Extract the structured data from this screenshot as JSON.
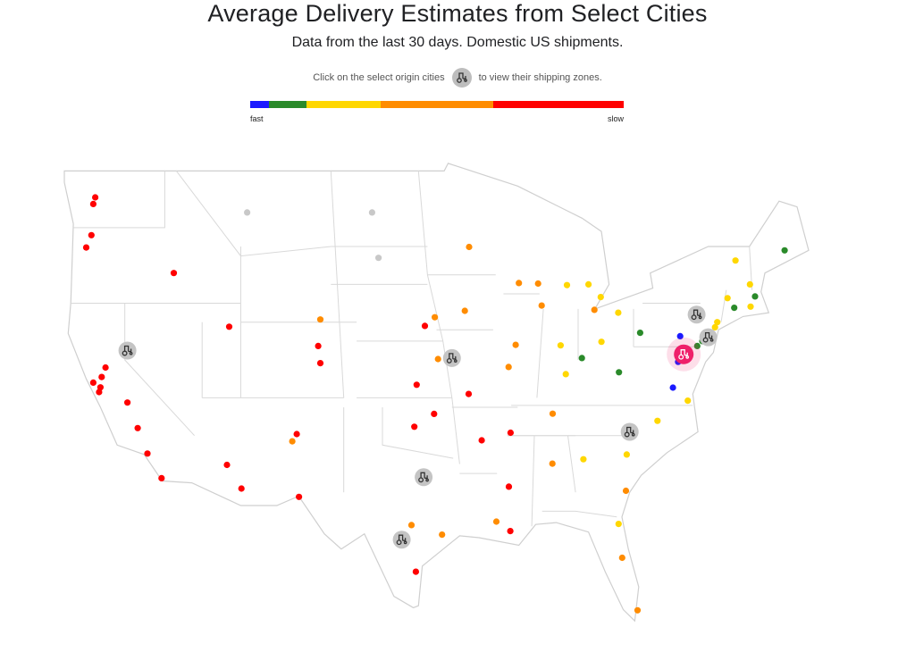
{
  "title": "Average Delivery Estimates from Select Cities",
  "subtitle": "Data from the last 30 days. Domestic US shipments.",
  "hint": {
    "before": "Click on the select origin cities",
    "after": "to view their shipping zones.",
    "icon": "truck-icon"
  },
  "legend": {
    "fast_label": "fast",
    "slow_label": "slow",
    "segments": [
      {
        "color": "#1a1aff",
        "weight": 5
      },
      {
        "color": "#2a8a2a",
        "weight": 10
      },
      {
        "color": "#ffd700",
        "weight": 20
      },
      {
        "color": "#ff8c00",
        "weight": 30
      },
      {
        "color": "#ff0000",
        "weight": 35
      }
    ]
  },
  "colors": {
    "fast": "#1a1aff",
    "good": "#2a8a2a",
    "medium": "#ffd700",
    "slow": "#ff8c00",
    "slowest": "#ff0000",
    "unavailable": "#c8c8c8",
    "selected_origin": "#ef1f6a"
  },
  "map": {
    "origins": [
      {
        "city": "Reno",
        "lat": 39.5,
        "lon": -119.8,
        "selected": false
      },
      {
        "city": "Kansas City",
        "lat": 39.1,
        "lon": -94.6,
        "selected": false
      },
      {
        "city": "Dallas",
        "lat": 32.8,
        "lon": -96.8,
        "selected": false
      },
      {
        "city": "San Antonio",
        "lat": 29.5,
        "lon": -98.5,
        "selected": false
      },
      {
        "city": "Charlotte",
        "lat": 35.2,
        "lon": -80.8,
        "selected": false
      },
      {
        "city": "Scranton",
        "lat": 41.4,
        "lon": -75.6,
        "selected": false
      },
      {
        "city": "Trenton",
        "lat": 40.2,
        "lon": -74.7,
        "selected": false
      },
      {
        "city": "Baltimore",
        "lat": 39.3,
        "lon": -76.6,
        "selected": true
      }
    ],
    "destinations": [
      {
        "lat": 47.6,
        "lon": -122.3,
        "c": "slowest"
      },
      {
        "lat": 47.25,
        "lon": -122.45,
        "c": "slowest"
      },
      {
        "lat": 45.6,
        "lon": -122.6,
        "c": "slowest"
      },
      {
        "lat": 44.95,
        "lon": -123.0,
        "c": "slowest"
      },
      {
        "lat": 43.6,
        "lon": -116.2,
        "c": "slowest"
      },
      {
        "lat": 46.8,
        "lon": -110.5,
        "c": "unavailable"
      },
      {
        "lat": 46.8,
        "lon": -100.8,
        "c": "unavailable"
      },
      {
        "lat": 44.4,
        "lon": -100.3,
        "c": "unavailable"
      },
      {
        "lat": 39.55,
        "lon": -119.85,
        "c": "slowest"
      },
      {
        "lat": 38.6,
        "lon": -121.5,
        "c": "slowest"
      },
      {
        "lat": 38.1,
        "lon": -121.8,
        "c": "slowest"
      },
      {
        "lat": 37.8,
        "lon": -122.45,
        "c": "slowest"
      },
      {
        "lat": 37.3,
        "lon": -122.0,
        "c": "slowest"
      },
      {
        "lat": 37.55,
        "lon": -121.9,
        "c": "slowest"
      },
      {
        "lat": 36.75,
        "lon": -119.8,
        "c": "slowest"
      },
      {
        "lat": 35.4,
        "lon": -119.0,
        "c": "slowest"
      },
      {
        "lat": 34.05,
        "lon": -118.25,
        "c": "slowest"
      },
      {
        "lat": 32.75,
        "lon": -117.15,
        "c": "slowest"
      },
      {
        "lat": 40.76,
        "lon": -111.9,
        "c": "slowest"
      },
      {
        "lat": 33.45,
        "lon": -112.07,
        "c": "slowest"
      },
      {
        "lat": 32.2,
        "lon": -110.95,
        "c": "slowest"
      },
      {
        "lat": 35.08,
        "lon": -106.65,
        "c": "slowest"
      },
      {
        "lat": 34.7,
        "lon": -107.0,
        "c": "slow"
      },
      {
        "lat": 31.76,
        "lon": -106.48,
        "c": "slowest"
      },
      {
        "lat": 39.74,
        "lon": -104.99,
        "c": "slowest"
      },
      {
        "lat": 38.83,
        "lon": -104.82,
        "c": "slowest"
      },
      {
        "lat": 41.14,
        "lon": -104.82,
        "c": "slow"
      },
      {
        "lat": 40.8,
        "lon": -96.7,
        "c": "slowest"
      },
      {
        "lat": 41.26,
        "lon": -95.93,
        "c": "slow"
      },
      {
        "lat": 39.05,
        "lon": -95.68,
        "c": "slow"
      },
      {
        "lat": 37.69,
        "lon": -97.34,
        "c": "slowest"
      },
      {
        "lat": 35.47,
        "lon": -97.52,
        "c": "slowest"
      },
      {
        "lat": 36.15,
        "lon": -95.99,
        "c": "slowest"
      },
      {
        "lat": 34.75,
        "lon": -92.29,
        "c": "slowest"
      },
      {
        "lat": 29.76,
        "lon": -95.37,
        "c": "slow"
      },
      {
        "lat": 29.42,
        "lon": -98.49,
        "c": "slow"
      },
      {
        "lat": 27.8,
        "lon": -97.4,
        "c": "slowest"
      },
      {
        "lat": 30.27,
        "lon": -97.74,
        "c": "slow"
      },
      {
        "lat": 44.98,
        "lon": -93.27,
        "c": "slow"
      },
      {
        "lat": 41.6,
        "lon": -93.6,
        "c": "slow"
      },
      {
        "lat": 43.07,
        "lon": -89.4,
        "c": "slow"
      },
      {
        "lat": 43.04,
        "lon": -87.91,
        "c": "slow"
      },
      {
        "lat": 41.88,
        "lon": -87.63,
        "c": "slow"
      },
      {
        "lat": 39.8,
        "lon": -89.65,
        "c": "slow"
      },
      {
        "lat": 38.63,
        "lon": -90.2,
        "c": "slow"
      },
      {
        "lat": 39.1,
        "lon": -94.58,
        "c": "slow"
      },
      {
        "lat": 37.2,
        "lon": -93.3,
        "c": "slowest"
      },
      {
        "lat": 42.33,
        "lon": -83.05,
        "c": "medium"
      },
      {
        "lat": 42.96,
        "lon": -85.67,
        "c": "medium"
      },
      {
        "lat": 43.0,
        "lon": -84.0,
        "c": "medium"
      },
      {
        "lat": 41.65,
        "lon": -83.54,
        "c": "slow"
      },
      {
        "lat": 39.77,
        "lon": -86.16,
        "c": "medium"
      },
      {
        "lat": 39.96,
        "lon": -82.99,
        "c": "medium"
      },
      {
        "lat": 41.5,
        "lon": -81.69,
        "c": "medium"
      },
      {
        "lat": 39.1,
        "lon": -84.51,
        "c": "good"
      },
      {
        "lat": 38.25,
        "lon": -85.76,
        "c": "medium"
      },
      {
        "lat": 38.35,
        "lon": -81.63,
        "c": "good"
      },
      {
        "lat": 40.44,
        "lon": -79.99,
        "c": "good"
      },
      {
        "lat": 36.16,
        "lon": -86.78,
        "c": "slow"
      },
      {
        "lat": 35.15,
        "lon": -90.05,
        "c": "slowest"
      },
      {
        "lat": 32.3,
        "lon": -90.18,
        "c": "slowest"
      },
      {
        "lat": 33.52,
        "lon": -86.8,
        "c": "slow"
      },
      {
        "lat": 33.75,
        "lon": -84.39,
        "c": "medium"
      },
      {
        "lat": 32.08,
        "lon": -81.09,
        "c": "slow"
      },
      {
        "lat": 30.33,
        "lon": -81.66,
        "c": "medium"
      },
      {
        "lat": 28.54,
        "lon": -81.38,
        "c": "slow"
      },
      {
        "lat": 25.76,
        "lon": -80.19,
        "c": "slow"
      },
      {
        "lat": 30.45,
        "lon": -91.15,
        "c": "slow"
      },
      {
        "lat": 29.95,
        "lon": -90.07,
        "c": "slowest"
      },
      {
        "lat": 35.23,
        "lon": -80.84,
        "c": "medium"
      },
      {
        "lat": 35.78,
        "lon": -78.64,
        "c": "medium"
      },
      {
        "lat": 34.0,
        "lon": -81.03,
        "c": "medium"
      },
      {
        "lat": 36.85,
        "lon": -76.29,
        "c": "medium"
      },
      {
        "lat": 37.54,
        "lon": -77.44,
        "c": "fast"
      },
      {
        "lat": 38.9,
        "lon": -77.04,
        "c": "fast"
      },
      {
        "lat": 40.26,
        "lon": -76.88,
        "c": "fast"
      },
      {
        "lat": 39.74,
        "lon": -75.55,
        "c": "good"
      },
      {
        "lat": 40.0,
        "lon": -75.16,
        "c": "good"
      },
      {
        "lat": 40.73,
        "lon": -74.17,
        "c": "medium"
      },
      {
        "lat": 41.0,
        "lon": -74.0,
        "c": "medium"
      },
      {
        "lat": 41.76,
        "lon": -72.68,
        "c": "good"
      },
      {
        "lat": 41.82,
        "lon": -71.41,
        "c": "medium"
      },
      {
        "lat": 42.36,
        "lon": -71.06,
        "c": "good"
      },
      {
        "lat": 42.27,
        "lon": -73.2,
        "c": "medium"
      },
      {
        "lat": 43.0,
        "lon": -71.46,
        "c": "medium"
      },
      {
        "lat": 44.26,
        "lon": -72.58,
        "c": "medium"
      },
      {
        "lat": 44.8,
        "lon": -68.77,
        "c": "good"
      }
    ]
  }
}
